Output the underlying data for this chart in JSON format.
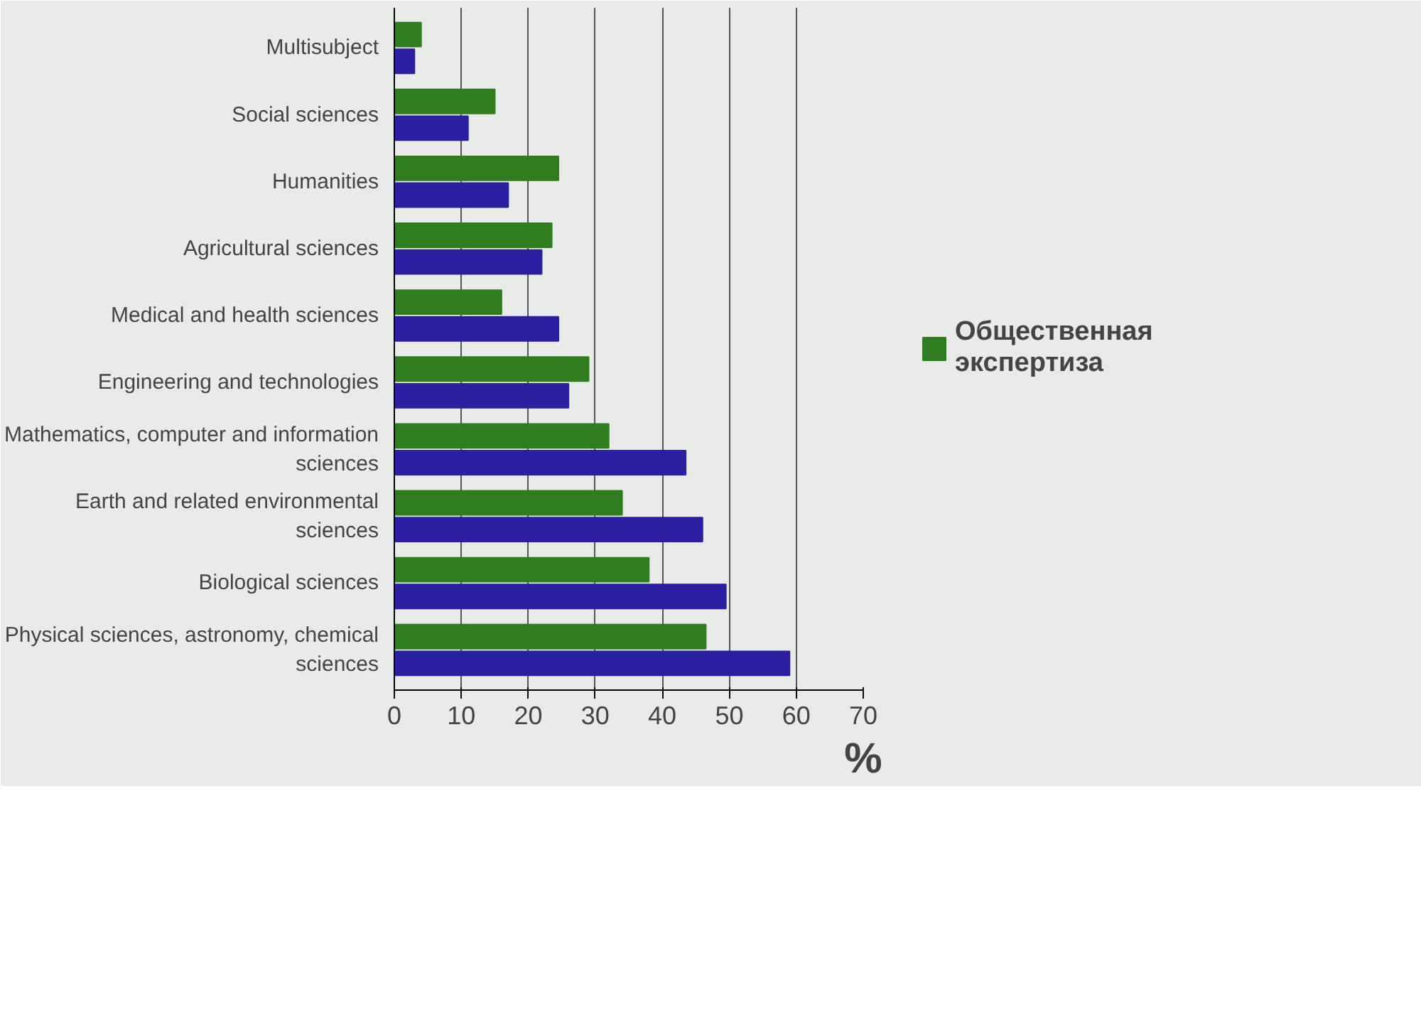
{
  "chart_data": {
    "type": "bar",
    "orientation": "horizontal",
    "xlabel": "%",
    "categories": [
      "Multisubject",
      "Social sciences",
      "Humanities",
      "Agricultural sciences",
      "Medical and health sciences",
      "Engineering and technologies",
      "Mathematics, computer and information sciences",
      "Earth and related environmental sciences",
      "Biological sciences",
      "Physical sciences, astronomy, chemical sciences"
    ],
    "series": [
      {
        "name": "Общественная экспертиза",
        "color": "#2e7d1e",
        "values": [
          4,
          15,
          24.5,
          23.5,
          16,
          29,
          32,
          34,
          38,
          46.5
        ]
      },
      {
        "color": "#2a1fa0",
        "values": [
          3,
          11,
          17,
          22,
          24.5,
          26,
          43.5,
          46,
          49.5,
          59
        ]
      }
    ],
    "xlim": [
      0,
      70
    ],
    "xticks": [
      0,
      10,
      20,
      30,
      40,
      50,
      60,
      70
    ],
    "grid": "x",
    "legend": "right"
  }
}
